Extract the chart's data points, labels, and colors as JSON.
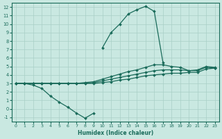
{
  "xlabel": "Humidex (Indice chaleur)",
  "background_color": "#c9e8e1",
  "grid_color": "#a8cfc6",
  "line_color": "#1a6b5a",
  "xlim": [
    -0.5,
    23.5
  ],
  "ylim": [
    -1.5,
    12.5
  ],
  "xticks": [
    0,
    1,
    2,
    3,
    4,
    5,
    6,
    7,
    8,
    9,
    10,
    11,
    12,
    13,
    14,
    15,
    16,
    17,
    18,
    19,
    20,
    21,
    22,
    23
  ],
  "yticks": [
    -1,
    0,
    1,
    2,
    3,
    4,
    5,
    6,
    7,
    8,
    9,
    10,
    11,
    12
  ],
  "series1_x": [
    0,
    1,
    2,
    3,
    4,
    5,
    6,
    7,
    8,
    9
  ],
  "series1_y": [
    3.0,
    3.0,
    2.8,
    2.4,
    1.5,
    0.8,
    0.2,
    -0.5,
    -1.1,
    -0.5
  ],
  "series2_x": [
    0,
    1,
    2,
    3,
    4,
    5,
    6,
    7,
    8,
    9,
    10,
    11,
    12,
    13,
    14,
    15,
    16,
    17,
    18,
    19,
    20,
    21,
    22,
    23
  ],
  "series2_y": [
    3.0,
    3.0,
    3.0,
    3.0,
    3.0,
    3.0,
    3.0,
    3.0,
    3.0,
    3.0,
    3.1,
    3.2,
    3.4,
    3.5,
    3.7,
    3.9,
    4.0,
    4.1,
    4.2,
    4.2,
    4.3,
    4.3,
    4.7,
    4.8
  ],
  "series3_x": [
    0,
    1,
    2,
    3,
    4,
    5,
    6,
    7,
    8,
    9,
    10,
    11,
    12,
    13,
    14,
    15,
    16,
    17,
    18,
    19,
    20,
    21,
    22,
    23
  ],
  "series3_y": [
    3.0,
    3.0,
    3.0,
    3.0,
    3.0,
    3.0,
    3.0,
    3.0,
    3.0,
    3.1,
    3.3,
    3.5,
    3.7,
    3.9,
    4.1,
    4.3,
    4.5,
    4.6,
    4.6,
    4.6,
    4.5,
    4.6,
    5.0,
    4.9
  ],
  "series4_x": [
    0,
    1,
    2,
    3,
    4,
    5,
    6,
    7,
    8,
    9,
    10,
    11,
    12,
    13,
    14,
    15,
    16,
    17,
    18,
    19,
    20,
    21,
    22,
    23
  ],
  "series4_y": [
    3.0,
    3.0,
    3.0,
    3.0,
    3.0,
    3.0,
    3.0,
    3.0,
    3.1,
    3.2,
    3.5,
    3.8,
    4.1,
    4.4,
    4.6,
    4.9,
    5.2,
    5.2,
    5.0,
    4.9,
    4.5,
    4.5,
    4.9,
    4.8
  ],
  "series5_x": [
    10,
    11,
    12,
    13,
    14,
    15,
    16,
    17
  ],
  "series5_y": [
    7.2,
    9.0,
    10.0,
    11.2,
    11.7,
    12.1,
    11.5,
    5.5
  ]
}
